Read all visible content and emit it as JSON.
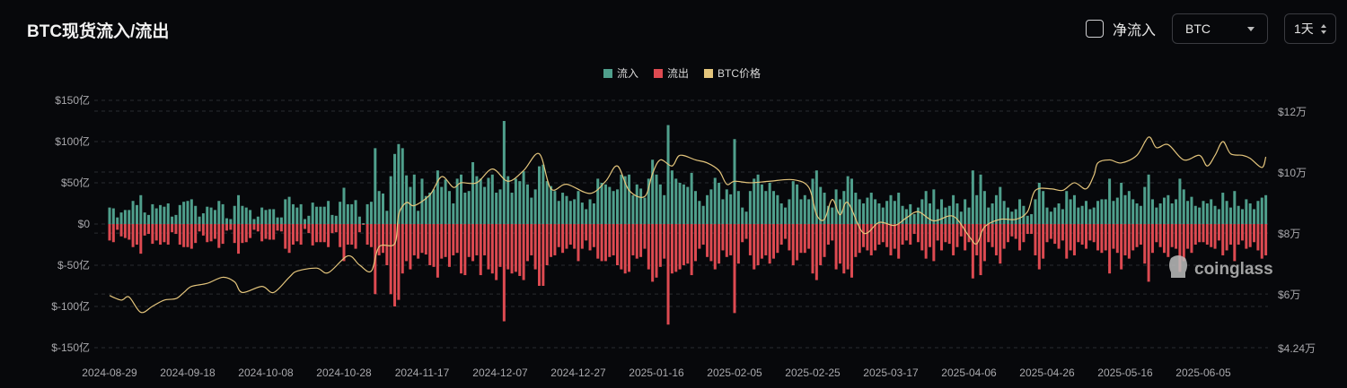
{
  "header": {
    "title": "BTC现货流入/流出",
    "net_flow_label": "净流入",
    "coin_select": "BTC",
    "period_select": "1天"
  },
  "watermark": "coinglass",
  "chart_data": {
    "type": "bar",
    "title": "BTC现货流入/流出",
    "start_date": "2024-08-29",
    "x_tick_labels": [
      "2024-08-29",
      "2024-09-18",
      "2024-10-08",
      "2024-10-28",
      "2024-11-17",
      "2024-12-07",
      "2024-12-27",
      "2025-01-16",
      "2025-02-05",
      "2025-02-25",
      "2025-03-17",
      "2025-04-06",
      "2025-04-26",
      "2025-05-16",
      "2025-06-05"
    ],
    "y_left": {
      "unit": "亿 USD",
      "ylim": [
        -150,
        150
      ],
      "ticks": [
        150,
        100,
        50,
        0,
        -50,
        -100,
        -150
      ],
      "tick_labels": [
        "$150亿",
        "$100亿",
        "$50亿",
        "$0",
        "$-50亿",
        "$-100亿",
        "$-150亿"
      ]
    },
    "y_right": {
      "unit": "USD",
      "ylim": [
        42400,
        120000
      ],
      "ticks": [
        120000,
        100000,
        80000,
        60000,
        42400
      ],
      "tick_labels": [
        "$12万",
        "$10万",
        "$8万",
        "$6万",
        "$4.24万"
      ]
    },
    "legend": {
      "position": "top-center",
      "items": [
        {
          "label": "流入",
          "color": "#4f9f8c"
        },
        {
          "label": "流出",
          "color": "#dd4a51"
        },
        {
          "label": "BTC价格",
          "color": "#e4c57c"
        }
      ]
    },
    "grid": true,
    "series": [
      {
        "name": "流入",
        "color": "#4f9f8c",
        "values": [
          20,
          19,
          8,
          14,
          17,
          17,
          28,
          23,
          35,
          14,
          11,
          24,
          19,
          23,
          21,
          25,
          9,
          11,
          23,
          27,
          28,
          30,
          22,
          9,
          13,
          21,
          20,
          17,
          28,
          24,
          7,
          6,
          22,
          35,
          22,
          20,
          17,
          6,
          9,
          20,
          17,
          18,
          18,
          8,
          8,
          30,
          33,
          24,
          20,
          24,
          6,
          10,
          26,
          21,
          21,
          21,
          28,
          11,
          10,
          27,
          44,
          24,
          24,
          29,
          9,
          1,
          24,
          27,
          92,
          40,
          37,
          16,
          58,
          85,
          97,
          92,
          59,
          45,
          60,
          16,
          55,
          34,
          38,
          42,
          65,
          45,
          54,
          40,
          25,
          55,
          60,
          38,
          40,
          75,
          58,
          55,
          45,
          56,
          60,
          38,
          42,
          125,
          58,
          38,
          55,
          52,
          64,
          48,
          32,
          42,
          70,
          72,
          52,
          46,
          40,
          28,
          38,
          34,
          28,
          30,
          40,
          26,
          18,
          30,
          25,
          55,
          50,
          48,
          45,
          40,
          42,
          60,
          58,
          60,
          35,
          48,
          43,
          32,
          55,
          78,
          60,
          48,
          35,
          120,
          65,
          55,
          50,
          48,
          45,
          62,
          40,
          28,
          22,
          35,
          42,
          56,
          50,
          30,
          42,
          36,
          103,
          40,
          20,
          15,
          40,
          55,
          60,
          48,
          40,
          50,
          40,
          35,
          25,
          20,
          30,
          52,
          48,
          30,
          35,
          30,
          55,
          65,
          45,
          38,
          22,
          20,
          42,
          30,
          40,
          58,
          55,
          38,
          30,
          25,
          32,
          38,
          30,
          25,
          20,
          28,
          35,
          28,
          38,
          22,
          18,
          24,
          12,
          20,
          30,
          40,
          25,
          42,
          18,
          30,
          20,
          22,
          35,
          25,
          15,
          30,
          20,
          65,
          35,
          60,
          40,
          20,
          25,
          35,
          45,
          28,
          20,
          15,
          18,
          30,
          22,
          10,
          12,
          30,
          50,
          40,
          20,
          15,
          20,
          25,
          18,
          40,
          30,
          35,
          20,
          22,
          28,
          18,
          20,
          28,
          30,
          30,
          55,
          28,
          32,
          50,
          35,
          40,
          30,
          25,
          22,
          45,
          60,
          30,
          20,
          25,
          32,
          35,
          25,
          30,
          55,
          42,
          28,
          33,
          22,
          20,
          28,
          25,
          30,
          22,
          18,
          38,
          28,
          20,
          40,
          22,
          18,
          30,
          25,
          18,
          28,
          32,
          35
        ]
      },
      {
        "name": "流出",
        "color": "#dd4a51",
        "values": [
          -20,
          -22,
          -7,
          -15,
          -17,
          -19,
          -28,
          -25,
          -36,
          -14,
          -12,
          -24,
          -20,
          -25,
          -22,
          -25,
          -10,
          -12,
          -25,
          -28,
          -28,
          -30,
          -23,
          -9,
          -14,
          -22,
          -21,
          -18,
          -29,
          -24,
          -8,
          -7,
          -23,
          -36,
          -23,
          -22,
          -17,
          -7,
          -9,
          -21,
          -18,
          -19,
          -19,
          -8,
          -9,
          -30,
          -35,
          -25,
          -21,
          -25,
          -6,
          -11,
          -26,
          -22,
          -22,
          -22,
          -28,
          -11,
          -10,
          -28,
          -45,
          -25,
          -25,
          -30,
          -10,
          -1,
          -25,
          -28,
          -85,
          -38,
          -35,
          -50,
          -85,
          -100,
          -92,
          -60,
          -45,
          -55,
          -38,
          -42,
          -35,
          -37,
          -50,
          -52,
          -65,
          -42,
          -40,
          -52,
          -38,
          -35,
          -60,
          -62,
          -40,
          -45,
          -38,
          -62,
          -38,
          -55,
          -60,
          -68,
          -52,
          -118,
          -55,
          -60,
          -58,
          -63,
          -68,
          -45,
          -38,
          -55,
          -75,
          -75,
          -50,
          -40,
          -38,
          -28,
          -35,
          -30,
          -25,
          -30,
          -45,
          -30,
          -20,
          -32,
          -28,
          -42,
          -45,
          -45,
          -40,
          -38,
          -50,
          -55,
          -60,
          -58,
          -38,
          -42,
          -40,
          -30,
          -55,
          -70,
          -65,
          -52,
          -42,
          -122,
          -60,
          -58,
          -55,
          -50,
          -48,
          -62,
          -45,
          -30,
          -25,
          -40,
          -45,
          -55,
          -48,
          -32,
          -40,
          -38,
          -108,
          -48,
          -22,
          -18,
          -38,
          -55,
          -50,
          -42,
          -38,
          -48,
          -42,
          -35,
          -25,
          -18,
          -32,
          -50,
          -44,
          -35,
          -35,
          -30,
          -60,
          -68,
          -50,
          -40,
          -25,
          -20,
          -55,
          -48,
          -60,
          -55,
          -65,
          -40,
          -35,
          -28,
          -32,
          -38,
          -32,
          -25,
          -22,
          -28,
          -38,
          -30,
          -42,
          -25,
          -20,
          -25,
          -12,
          -22,
          -32,
          -42,
          -28,
          -45,
          -20,
          -32,
          -22,
          -24,
          -38,
          -28,
          -15,
          -32,
          -22,
          -66,
          -38,
          -62,
          -45,
          -22,
          -28,
          -38,
          -48,
          -30,
          -22,
          -15,
          -18,
          -32,
          -22,
          -12,
          -12,
          -38,
          -55,
          -42,
          -22,
          -18,
          -24,
          -30,
          -20,
          -42,
          -32,
          -38,
          -22,
          -25,
          -30,
          -20,
          -22,
          -32,
          -35,
          -32,
          -60,
          -30,
          -35,
          -55,
          -38,
          -42,
          -32,
          -28,
          -25,
          -48,
          -70,
          -35,
          -22,
          -28,
          -35,
          -40,
          -28,
          -30,
          -58,
          -45,
          -30,
          -35,
          -25,
          -22,
          -22,
          -25,
          -28,
          -30,
          -20,
          -38,
          -32,
          -25,
          -45,
          -25,
          -20,
          -30,
          -28,
          -22,
          -32,
          -42,
          -38
        ]
      },
      {
        "name": "BTC价格",
        "color": "#e4c57c",
        "type": "line",
        "points": [
          [
            "2024-08-29",
            59500
          ],
          [
            "2024-09-01",
            58000
          ],
          [
            "2024-09-03",
            59000
          ],
          [
            "2024-09-06",
            54000
          ],
          [
            "2024-09-09",
            56000
          ],
          [
            "2024-09-12",
            58000
          ],
          [
            "2024-09-15",
            58500
          ],
          [
            "2024-09-17",
            60500
          ],
          [
            "2024-09-19",
            62500
          ],
          [
            "2024-09-23",
            63500
          ],
          [
            "2024-09-27",
            65500
          ],
          [
            "2024-09-30",
            64000
          ],
          [
            "2024-10-02",
            60500
          ],
          [
            "2024-10-07",
            62500
          ],
          [
            "2024-10-10",
            60500
          ],
          [
            "2024-10-14",
            65500
          ],
          [
            "2024-10-16",
            67500
          ],
          [
            "2024-10-21",
            68500
          ],
          [
            "2024-10-24",
            67000
          ],
          [
            "2024-10-29",
            72500
          ],
          [
            "2024-11-01",
            69500
          ],
          [
            "2024-11-04",
            67500
          ],
          [
            "2024-11-06",
            75500
          ],
          [
            "2024-11-10",
            76500
          ],
          [
            "2024-11-11",
            86000
          ],
          [
            "2024-11-13",
            90000
          ],
          [
            "2024-11-15",
            89000
          ],
          [
            "2024-11-19",
            92500
          ],
          [
            "2024-11-22",
            98500
          ],
          [
            "2024-11-25",
            95000
          ],
          [
            "2024-11-27",
            96500
          ],
          [
            "2024-12-01",
            96500
          ],
          [
            "2024-12-05",
            101000
          ],
          [
            "2024-12-09",
            97000
          ],
          [
            "2024-12-13",
            100500
          ],
          [
            "2024-12-17",
            106000
          ],
          [
            "2024-12-20",
            94500
          ],
          [
            "2024-12-24",
            96000
          ],
          [
            "2024-12-30",
            93000
          ],
          [
            "2025-01-03",
            97000
          ],
          [
            "2025-01-06",
            102000
          ],
          [
            "2025-01-09",
            94000
          ],
          [
            "2025-01-13",
            92000
          ],
          [
            "2025-01-15",
            99500
          ],
          [
            "2025-01-17",
            104000
          ],
          [
            "2025-01-20",
            102000
          ],
          [
            "2025-01-22",
            105500
          ],
          [
            "2025-01-26",
            104000
          ],
          [
            "2025-01-29",
            103000
          ],
          [
            "2025-02-01",
            100500
          ],
          [
            "2025-02-03",
            96000
          ],
          [
            "2025-02-05",
            97000
          ],
          [
            "2025-02-09",
            96500
          ],
          [
            "2025-02-14",
            97000
          ],
          [
            "2025-02-20",
            97500
          ],
          [
            "2025-02-24",
            95000
          ],
          [
            "2025-02-26",
            86000
          ],
          [
            "2025-02-28",
            84500
          ],
          [
            "2025-03-02",
            91000
          ],
          [
            "2025-03-04",
            86000
          ],
          [
            "2025-03-06",
            90000
          ],
          [
            "2025-03-10",
            80000
          ],
          [
            "2025-03-14",
            83500
          ],
          [
            "2025-03-18",
            82500
          ],
          [
            "2025-03-21",
            85000
          ],
          [
            "2025-03-24",
            87000
          ],
          [
            "2025-03-28",
            84000
          ],
          [
            "2025-04-02",
            85500
          ],
          [
            "2025-04-06",
            79000
          ],
          [
            "2025-04-08",
            76500
          ],
          [
            "2025-04-10",
            82000
          ],
          [
            "2025-04-14",
            84500
          ],
          [
            "2025-04-18",
            84500
          ],
          [
            "2025-04-21",
            87000
          ],
          [
            "2025-04-23",
            94000
          ],
          [
            "2025-04-27",
            94500
          ],
          [
            "2025-04-30",
            94000
          ],
          [
            "2025-05-03",
            96500
          ],
          [
            "2025-05-06",
            94500
          ],
          [
            "2025-05-08",
            99000
          ],
          [
            "2025-05-09",
            103000
          ],
          [
            "2025-05-12",
            104000
          ],
          [
            "2025-05-15",
            103000
          ],
          [
            "2025-05-19",
            105500
          ],
          [
            "2025-05-22",
            111500
          ],
          [
            "2025-05-24",
            108000
          ],
          [
            "2025-05-27",
            109000
          ],
          [
            "2025-05-31",
            104000
          ],
          [
            "2025-06-04",
            105500
          ],
          [
            "2025-06-06",
            102000
          ],
          [
            "2025-06-08",
            105500
          ],
          [
            "2025-06-10",
            110000
          ],
          [
            "2025-06-12",
            106000
          ],
          [
            "2025-06-15",
            105500
          ],
          [
            "2025-06-17",
            104500
          ],
          [
            "2025-06-20",
            101500
          ],
          [
            "2025-06-21",
            105000
          ]
        ]
      }
    ]
  }
}
